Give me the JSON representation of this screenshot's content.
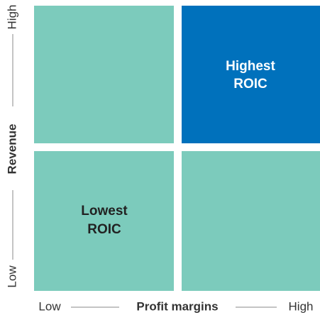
{
  "axes": {
    "y": {
      "label": "Revenue",
      "low": "Low",
      "high": "High"
    },
    "x": {
      "label": "Profit margins",
      "low": "Low",
      "high": "High"
    }
  },
  "quadrants": {
    "top_right": {
      "lines": [
        "Highest",
        "ROIC"
      ]
    },
    "bottom_left": {
      "lines": [
        "Lowest",
        "ROIC"
      ]
    }
  }
}
